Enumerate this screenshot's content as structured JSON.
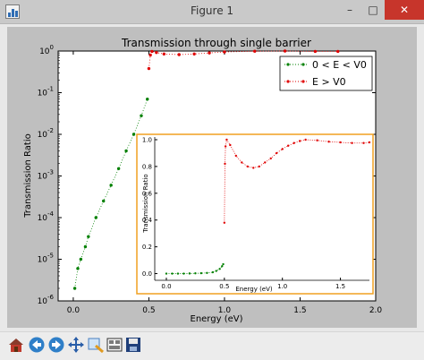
{
  "window": {
    "title": "Figure 1",
    "min_glyph": "–",
    "max_glyph": "□",
    "close_glyph": "✕"
  },
  "toolbar": {
    "buttons": [
      "home-icon",
      "back-arrow-icon",
      "forward-arrow-icon",
      "pan-icon",
      "zoom-icon",
      "subplots-icon",
      "save-icon"
    ]
  },
  "chart_data": [
    {
      "type": "scatter",
      "title": "Transmission through single barrier",
      "xlabel": "Energy (eV)",
      "ylabel": "Transmission Ratio",
      "xlim": [
        -0.1,
        2.0
      ],
      "ylim": [
        1e-06,
        1
      ],
      "yscale": "log",
      "x_ticks": [
        "0.0",
        "0.5",
        "1.0",
        "1.5",
        "2.0"
      ],
      "y_ticks": [
        "10^-6",
        "10^-5",
        "10^-4",
        "10^-3",
        "10^-2",
        "10^-1",
        "10^0"
      ],
      "legend_position": "top-right",
      "series": [
        {
          "name": "0 < E < V0",
          "color": "#008000",
          "marker": "dot",
          "linestyle": "dotted",
          "x": [
            0.01,
            0.03,
            0.05,
            0.08,
            0.1,
            0.15,
            0.2,
            0.25,
            0.3,
            0.35,
            0.4,
            0.45,
            0.49
          ],
          "y": [
            2e-06,
            6e-06,
            1e-05,
            2e-05,
            3.5e-05,
            0.0001,
            0.00025,
            0.0006,
            0.0015,
            0.004,
            0.01,
            0.028,
            0.07
          ]
        },
        {
          "name": "E > V0",
          "color": "#e00000",
          "marker": "dot",
          "linestyle": "dotted",
          "x": [
            0.5,
            0.51,
            0.52,
            0.55,
            0.6,
            0.7,
            0.8,
            0.9,
            1.0,
            1.2,
            1.4,
            1.6,
            1.75
          ],
          "y": [
            0.38,
            0.8,
            0.98,
            0.92,
            0.85,
            0.82,
            0.85,
            0.9,
            0.95,
            0.99,
            1.0,
            0.98,
            0.98
          ]
        }
      ]
    },
    {
      "type": "scatter",
      "title": "",
      "xlabel": "Energy (eV)",
      "ylabel": "Transmission Ratio",
      "xlim": [
        -0.1,
        1.75
      ],
      "ylim": [
        -0.05,
        1.02
      ],
      "x_ticks": [
        "0.0",
        "0.5",
        "1.0",
        "1.5"
      ],
      "y_ticks": [
        "0.0",
        "0.2",
        "0.4",
        "0.6",
        "0.8",
        "1.0"
      ],
      "series": [
        {
          "name": "0 < E < V0",
          "color": "#008000",
          "marker": "dot",
          "linestyle": "dotted",
          "x": [
            0.0,
            0.05,
            0.1,
            0.15,
            0.2,
            0.25,
            0.3,
            0.35,
            0.4,
            0.43,
            0.46,
            0.48,
            0.49
          ],
          "y": [
            0.0,
            0.0,
            0.0,
            0.0,
            0.001,
            0.002,
            0.003,
            0.005,
            0.01,
            0.02,
            0.035,
            0.055,
            0.07
          ]
        },
        {
          "name": "E > V0",
          "color": "#e00000",
          "marker": "dot",
          "linestyle": "dotted",
          "x": [
            0.5,
            0.505,
            0.51,
            0.52,
            0.55,
            0.6,
            0.65,
            0.7,
            0.75,
            0.8,
            0.85,
            0.9,
            0.95,
            1.0,
            1.05,
            1.1,
            1.15,
            1.2,
            1.3,
            1.4,
            1.5,
            1.6,
            1.7,
            1.75
          ],
          "y": [
            0.38,
            0.82,
            0.95,
            1.0,
            0.96,
            0.88,
            0.83,
            0.8,
            0.79,
            0.8,
            0.83,
            0.86,
            0.9,
            0.93,
            0.955,
            0.975,
            0.99,
            1.0,
            0.995,
            0.985,
            0.98,
            0.975,
            0.975,
            0.98
          ]
        }
      ]
    }
  ]
}
